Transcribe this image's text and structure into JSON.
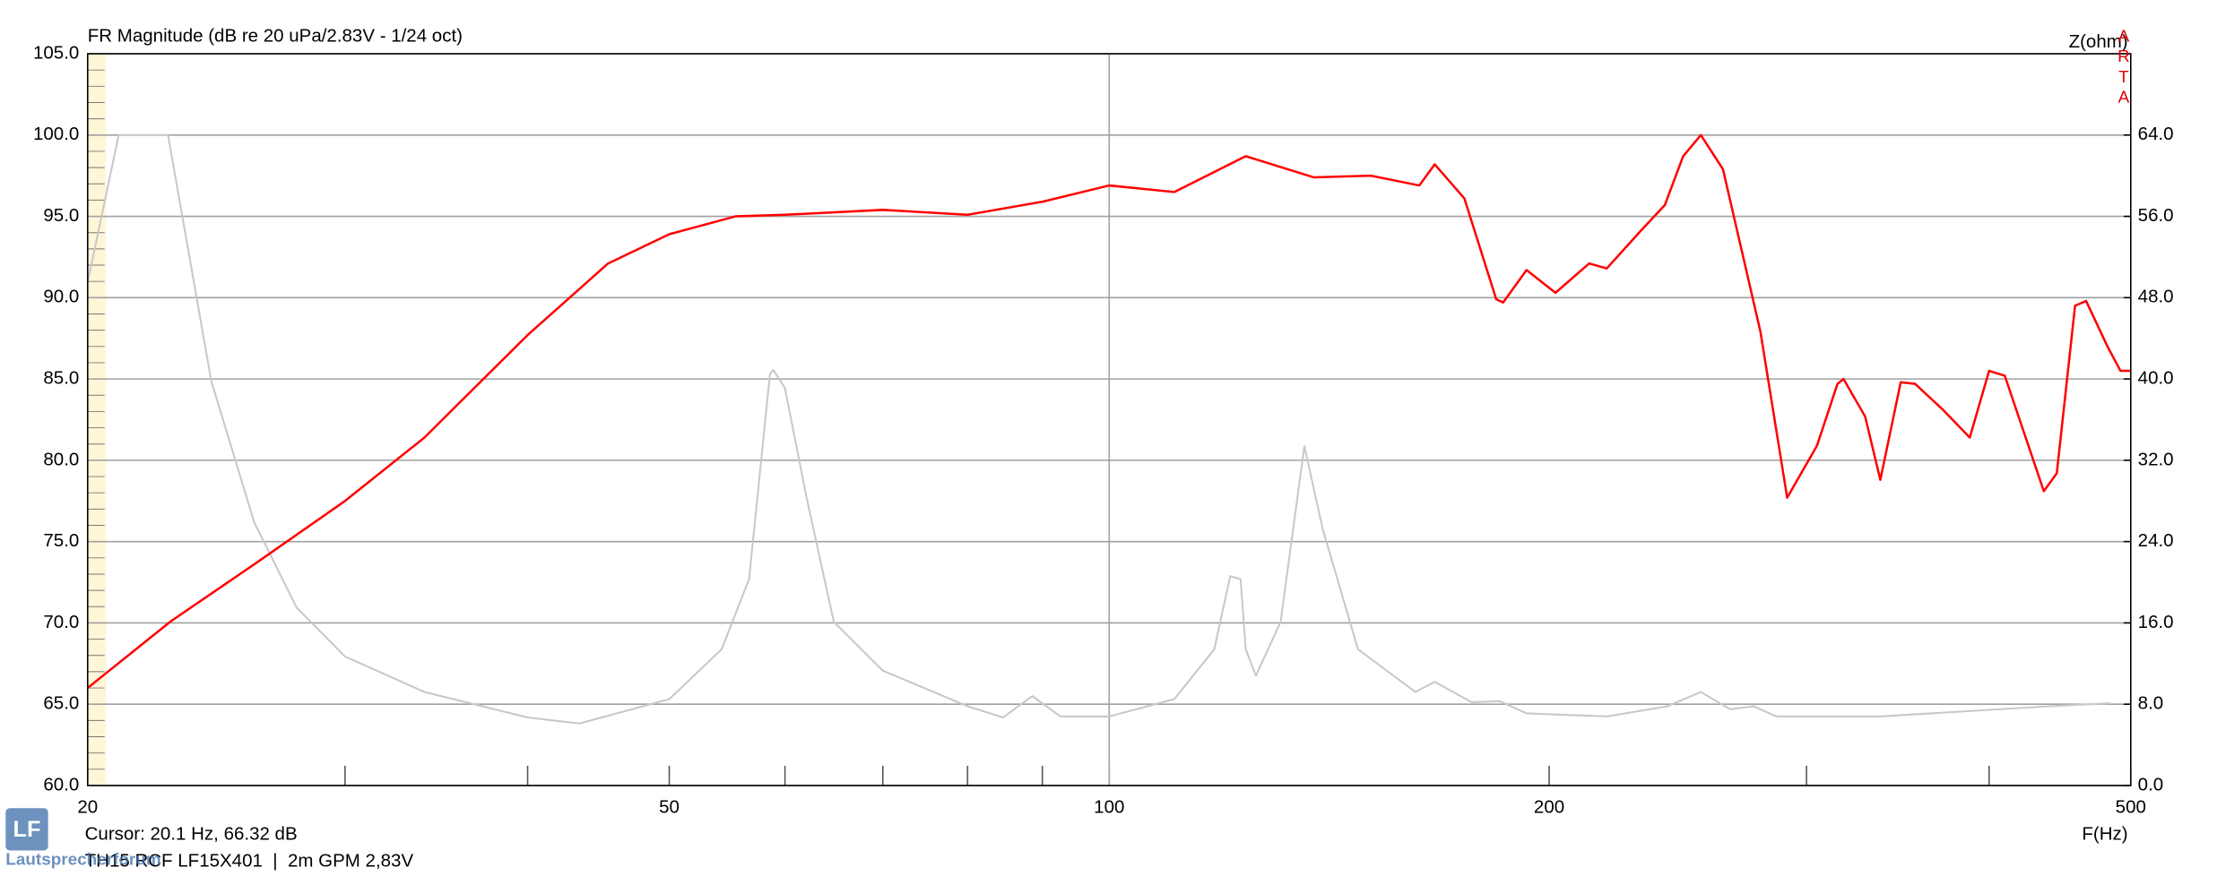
{
  "chart_data": {
    "type": "line",
    "title": "FR Magnitude (dB re 20 uPa/2.83V - 1/24 oct)",
    "y2_label": "Z(ohm)",
    "x_label": "F(Hz)",
    "watermark": "ARTA",
    "cursor": "Cursor: 20.1 Hz, 66.32 dB",
    "footer": "TH15 RCF LF15X401  |  2m GPM 2,83V",
    "logo": "LF",
    "logo_caption": "Lautsprecherforum",
    "x_scale": "log",
    "xlim": [
      20,
      500
    ],
    "xticks": [
      20,
      50,
      100,
      200,
      500
    ],
    "xminorticks": [
      30,
      40,
      60,
      70,
      80,
      90,
      300,
      400
    ],
    "x_grid_lines": [
      100
    ],
    "ylim": [
      60,
      105
    ],
    "yticks": [
      {
        "value": 60,
        "label": "60.0"
      },
      {
        "value": 65,
        "label": "65.0"
      },
      {
        "value": 70,
        "label": "70.0"
      },
      {
        "value": 75,
        "label": "75.0"
      },
      {
        "value": 80,
        "label": "80.0"
      },
      {
        "value": 85,
        "label": "85.0"
      },
      {
        "value": 90,
        "label": "90.0"
      },
      {
        "value": 95,
        "label": "95.0"
      },
      {
        "value": 100,
        "label": "100.0"
      },
      {
        "value": 105,
        "label": "105.0"
      }
    ],
    "y2lim": [
      0,
      72
    ],
    "y2ticks": [
      {
        "value": 0,
        "label": "0.0"
      },
      {
        "value": 8,
        "label": "8.0"
      },
      {
        "value": 16,
        "label": "16.0"
      },
      {
        "value": 24,
        "label": "24.0"
      },
      {
        "value": 32,
        "label": "32.0"
      },
      {
        "value": 40,
        "label": "40.0"
      },
      {
        "value": 48,
        "label": "48.0"
      },
      {
        "value": 56,
        "label": "56.0"
      },
      {
        "value": 64,
        "label": "64.0"
      }
    ],
    "grid": true,
    "series": [
      {
        "color": "#ff0000",
        "x": [
          20,
          22.8,
          26,
          30,
          34,
          40,
          45.4,
          50,
          55.5,
          60,
          70,
          80,
          90,
          100,
          110.8,
          124,
          138,
          151,
          163,
          167,
          175,
          184,
          186,
          193,
          202,
          213,
          219,
          231,
          240,
          247,
          254,
          263,
          279,
          291,
          305,
          315,
          318,
          329,
          337,
          348,
          356,
          372,
          388,
          400,
          410,
          436,
          445,
          458,
          466,
          482,
          492,
          500
        ],
        "values": [
          66.0,
          70.1,
          73.6,
          77.5,
          81.4,
          87.7,
          92.1,
          93.9,
          95.0,
          95.1,
          95.4,
          95.1,
          95.9,
          96.9,
          96.5,
          98.7,
          97.4,
          97.5,
          96.9,
          98.2,
          96.1,
          89.9,
          89.7,
          91.7,
          90.3,
          92.1,
          91.8,
          94.1,
          95.7,
          98.7,
          100.0,
          97.9,
          87.9,
          77.7,
          80.9,
          84.7,
          85.0,
          82.7,
          78.8,
          84.8,
          84.7,
          83.1,
          81.4,
          85.5,
          85.2,
          78.1,
          79.2,
          89.5,
          89.8,
          87.0,
          85.5,
          85.5
        ]
      },
      {
        "color": "#c8c8c8",
        "axis": "y2",
        "x": [
          20,
          21,
          22.7,
          24.3,
          26,
          27.8,
          30,
          34,
          40,
          43.4,
          50,
          54.3,
          56.7,
          58.6,
          58.9,
          60,
          62,
          64.8,
          70,
          80,
          84.6,
          88.6,
          92.6,
          100,
          110.8,
          118,
          121,
          123,
          124,
          126,
          131,
          136,
          140,
          148,
          162,
          167,
          177,
          185,
          193,
          219,
          241,
          254,
          266,
          276,
          286,
          337,
          440,
          484
        ],
        "values": [
          49.5,
          64,
          64,
          39.8,
          25.9,
          17.5,
          12.7,
          9.2,
          6.7,
          6.1,
          8.5,
          13.4,
          20.3,
          40.5,
          40.9,
          39.1,
          28.7,
          16.1,
          11.3,
          7.8,
          6.7,
          8.8,
          6.8,
          6.8,
          8.5,
          13.4,
          20.6,
          20.3,
          13.4,
          10.8,
          16.1,
          33.4,
          25.2,
          13.4,
          9.2,
          10.2,
          8.2,
          8.3,
          7.1,
          6.8,
          7.8,
          9.2,
          7.5,
          7.8,
          6.8,
          6.8,
          7.8,
          8.1
        ]
      }
    ]
  }
}
